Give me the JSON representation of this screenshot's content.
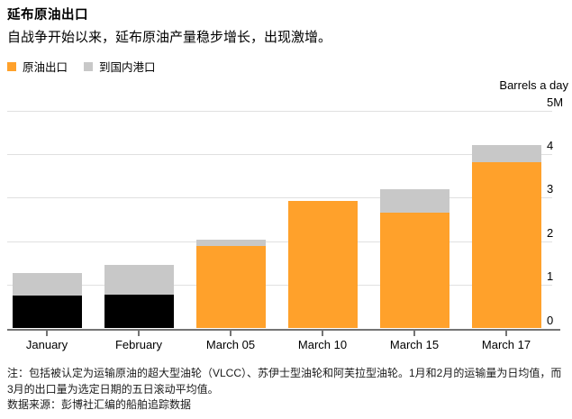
{
  "header": {
    "title": "延布原油出口",
    "subtitle": "自战争开始以来，延布原油产量稳步增长，出现激增。"
  },
  "legend": {
    "items": [
      {
        "label": "原油出口",
        "color": "#FFA12B"
      },
      {
        "label": "到国内港口",
        "color": "#C8C8C8"
      }
    ]
  },
  "chart_data": {
    "type": "bar",
    "stacked": true,
    "title": "延布原油出口",
    "ylabel": "Barrels a day",
    "unit": "million barrels a day",
    "ylim": [
      0,
      5
    ],
    "yticks": [
      "0",
      "1",
      "2",
      "3",
      "4",
      "5M"
    ],
    "grid": true,
    "legend_position": "top-left",
    "categories": [
      "January",
      "February",
      "March 05",
      "March 10",
      "March 15",
      "March 17"
    ],
    "series": [
      {
        "name": "原油出口",
        "values": [
          0.75,
          0.78,
          1.89,
          2.92,
          2.66,
          3.81
        ],
        "bar_colors": [
          "#000000",
          "#000000",
          "#FFA12B",
          "#FFA12B",
          "#FFA12B",
          "#FFA12B"
        ]
      },
      {
        "name": "到国内港口",
        "values": [
          0.52,
          0.67,
          0.15,
          0,
          0.53,
          0.39
        ],
        "color": "#C8C8C8"
      }
    ]
  },
  "footer": {
    "note_lines": [
      "注：包括被认定为运输原油的超大型油轮（VLCC）、苏伊士型油轮和阿芙拉型油轮。1月和2月的运输量为日均值，而",
      "3月的出口量为选定日期的五日滚动平均值。"
    ],
    "source": "数据来源：彭博社汇编的船舶追踪数据"
  },
  "colors": {
    "accent_orange": "#FFA12B",
    "domestic_gray": "#C8C8C8",
    "jan_feb_black": "#000000",
    "gridline": "#E0E0E0",
    "axis": "#747474"
  }
}
